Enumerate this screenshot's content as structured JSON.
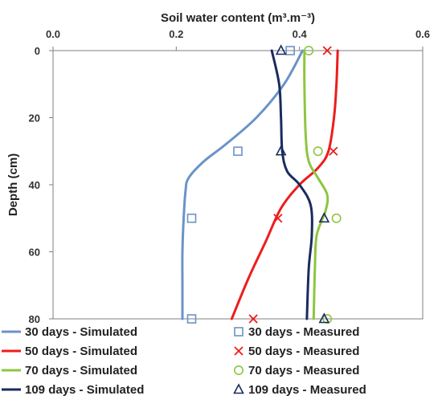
{
  "chart_data": {
    "type": "line",
    "xlabel": "Soil water content (m³.m⁻³)",
    "ylabel": "Depth (cm)",
    "xlim": [
      0,
      0.6
    ],
    "ylim": [
      0,
      80
    ],
    "y_inverted": true,
    "x_axis_position": "top",
    "x_ticks": [
      "0.0",
      "0.2",
      "0.4",
      "0.6"
    ],
    "y_ticks": [
      "0",
      "20",
      "40",
      "60",
      "80"
    ],
    "grid": false,
    "series": [
      {
        "name": "30 days - Simulated",
        "kind": "line",
        "color": "#6a93c8",
        "points": [
          [
            0.405,
            0
          ],
          [
            0.375,
            10
          ],
          [
            0.33,
            20
          ],
          [
            0.28,
            28
          ],
          [
            0.245,
            33
          ],
          [
            0.22,
            38
          ],
          [
            0.215,
            42
          ],
          [
            0.212,
            50
          ],
          [
            0.21,
            60
          ],
          [
            0.21,
            70
          ],
          [
            0.21,
            80
          ]
        ]
      },
      {
        "name": "50 days - Simulated",
        "kind": "line",
        "color": "#ee1c1c",
        "points": [
          [
            0.462,
            0
          ],
          [
            0.46,
            10
          ],
          [
            0.456,
            20
          ],
          [
            0.447,
            30
          ],
          [
            0.43,
            35
          ],
          [
            0.4,
            40
          ],
          [
            0.37,
            47
          ],
          [
            0.345,
            57
          ],
          [
            0.317,
            68
          ],
          [
            0.29,
            80
          ]
        ]
      },
      {
        "name": "70 days - Simulated",
        "kind": "line",
        "color": "#8dc63f",
        "points": [
          [
            0.408,
            0
          ],
          [
            0.408,
            10
          ],
          [
            0.41,
            25
          ],
          [
            0.415,
            33
          ],
          [
            0.43,
            38
          ],
          [
            0.445,
            43
          ],
          [
            0.442,
            48
          ],
          [
            0.428,
            55
          ],
          [
            0.425,
            65
          ],
          [
            0.423,
            80
          ]
        ]
      },
      {
        "name": "109 days - Simulated",
        "kind": "line",
        "color": "#1a2b5e",
        "points": [
          [
            0.355,
            0
          ],
          [
            0.367,
            10
          ],
          [
            0.37,
            20
          ],
          [
            0.372,
            30
          ],
          [
            0.38,
            36
          ],
          [
            0.4,
            40
          ],
          [
            0.418,
            46
          ],
          [
            0.42,
            55
          ],
          [
            0.415,
            65
          ],
          [
            0.412,
            80
          ]
        ]
      },
      {
        "name": "30 days - Measured",
        "kind": "marker",
        "marker": "square",
        "color": "#6a93c8",
        "points": [
          [
            0.385,
            0
          ],
          [
            0.3,
            30
          ],
          [
            0.225,
            50
          ],
          [
            0.225,
            80
          ]
        ]
      },
      {
        "name": "50 days - Measured",
        "kind": "marker",
        "marker": "cross",
        "color": "#ee1c1c",
        "points": [
          [
            0.445,
            0
          ],
          [
            0.455,
            30
          ],
          [
            0.365,
            50
          ],
          [
            0.325,
            80
          ]
        ]
      },
      {
        "name": "70 days - Measured",
        "kind": "marker",
        "marker": "circle",
        "color": "#8dc63f",
        "points": [
          [
            0.415,
            0
          ],
          [
            0.43,
            30
          ],
          [
            0.46,
            50
          ],
          [
            0.445,
            80
          ]
        ]
      },
      {
        "name": "109 days - Measured",
        "kind": "marker",
        "marker": "triangle",
        "color": "#1a2b5e",
        "points": [
          [
            0.37,
            0
          ],
          [
            0.37,
            30
          ],
          [
            0.44,
            50
          ],
          [
            0.44,
            80
          ]
        ]
      }
    ],
    "legend": {
      "placement": "bottom",
      "entries": [
        {
          "label": "30 days - Simulated",
          "series": 0
        },
        {
          "label": "30 days - Measured",
          "series": 4
        },
        {
          "label": "50 days - Simulated",
          "series": 1
        },
        {
          "label": "50 days - Measured",
          "series": 5
        },
        {
          "label": "70 days - Simulated",
          "series": 2
        },
        {
          "label": "70 days - Measured",
          "series": 6
        },
        {
          "label": "109 days - Simulated",
          "series": 3
        },
        {
          "label": "109 days - Measured",
          "series": 7
        }
      ]
    }
  }
}
